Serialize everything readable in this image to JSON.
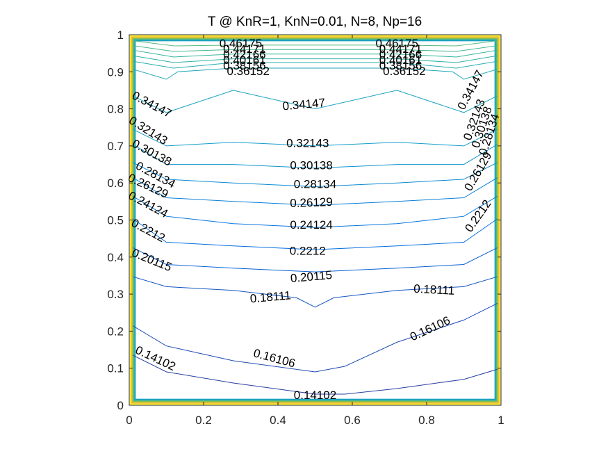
{
  "chart_data": {
    "type": "contour",
    "title": "T @ KnR=1, KnN=0.01, N=8, Np=16",
    "xlabel": "",
    "ylabel": "",
    "xlim": [
      0,
      1
    ],
    "ylim": [
      0,
      1
    ],
    "x_ticks": [
      0,
      0.2,
      0.4,
      0.6,
      0.8,
      1
    ],
    "y_ticks": [
      0,
      0.1,
      0.2,
      0.3,
      0.4,
      0.5,
      0.6,
      0.7,
      0.8,
      0.9,
      1
    ],
    "x_tick_labels": [
      "0",
      "0.2",
      "0.4",
      "0.6",
      "0.8",
      "1"
    ],
    "y_tick_labels": [
      "0",
      "0.1",
      "0.2",
      "0.3",
      "0.4",
      "0.5",
      "0.6",
      "0.7",
      "0.8",
      "0.9",
      "1"
    ],
    "grid": false,
    "colormap": "parula",
    "levels": [
      {
        "value": "0.14102",
        "x": [
          0.0,
          0.1,
          0.28,
          0.5,
          0.58,
          0.72,
          0.9,
          1.0
        ],
        "y": [
          0.14,
          0.09,
          0.06,
          0.03,
          0.03,
          0.045,
          0.07,
          0.1
        ]
      },
      {
        "value": "0.16106",
        "x": [
          0.0,
          0.1,
          0.28,
          0.5,
          0.58,
          0.72,
          0.9,
          1.0
        ],
        "y": [
          0.22,
          0.16,
          0.12,
          0.09,
          0.105,
          0.17,
          0.23,
          0.28
        ]
      },
      {
        "value": "0.18111",
        "x": [
          0.0,
          0.1,
          0.28,
          0.45,
          0.5,
          0.55,
          0.72,
          0.9,
          1.0
        ],
        "y": [
          0.35,
          0.32,
          0.31,
          0.29,
          0.265,
          0.29,
          0.31,
          0.32,
          0.35
        ]
      },
      {
        "value": "0.20115",
        "x": [
          0.0,
          0.1,
          0.28,
          0.5,
          0.72,
          0.9,
          1.0
        ],
        "y": [
          0.43,
          0.38,
          0.37,
          0.36,
          0.37,
          0.38,
          0.43
        ]
      },
      {
        "value": "0.2212",
        "x": [
          0.0,
          0.1,
          0.28,
          0.5,
          0.72,
          0.9,
          1.0
        ],
        "y": [
          0.51,
          0.44,
          0.43,
          0.42,
          0.43,
          0.44,
          0.51
        ]
      },
      {
        "value": "0.24124",
        "x": [
          0.0,
          0.1,
          0.28,
          0.5,
          0.72,
          0.9,
          1.0
        ],
        "y": [
          0.57,
          0.51,
          0.49,
          0.48,
          0.49,
          0.51,
          0.57
        ]
      },
      {
        "value": "0.26129",
        "x": [
          0.0,
          0.1,
          0.28,
          0.5,
          0.72,
          0.9,
          1.0
        ],
        "y": [
          0.62,
          0.56,
          0.55,
          0.54,
          0.55,
          0.56,
          0.62
        ]
      },
      {
        "value": "0.28134",
        "x": [
          0.0,
          0.1,
          0.28,
          0.5,
          0.72,
          0.9,
          1.0
        ],
        "y": [
          0.66,
          0.61,
          0.6,
          0.59,
          0.6,
          0.61,
          0.66
        ]
      },
      {
        "value": "0.30138",
        "x": [
          0.0,
          0.1,
          0.28,
          0.5,
          0.72,
          0.9,
          1.0
        ],
        "y": [
          0.71,
          0.65,
          0.65,
          0.64,
          0.65,
          0.65,
          0.71
        ]
      },
      {
        "value": "0.32143",
        "x": [
          0.0,
          0.1,
          0.28,
          0.5,
          0.72,
          0.9,
          1.0
        ],
        "y": [
          0.75,
          0.7,
          0.71,
          0.7,
          0.71,
          0.7,
          0.75
        ]
      },
      {
        "value": "0.34147",
        "x": [
          0.0,
          0.1,
          0.28,
          0.5,
          0.72,
          0.9,
          1.0
        ],
        "y": [
          0.84,
          0.79,
          0.85,
          0.8,
          0.85,
          0.79,
          0.84
        ]
      },
      {
        "value": "0.36152",
        "x": [
          0.0,
          0.1,
          0.13,
          0.28,
          0.5,
          0.72,
          0.87,
          0.9,
          1.0
        ],
        "y": [
          0.91,
          0.88,
          0.9,
          0.91,
          0.91,
          0.91,
          0.9,
          0.88,
          0.91
        ]
      },
      {
        "value": "0.38156",
        "x": [
          0.0,
          0.12,
          0.28,
          0.5,
          0.72,
          0.88,
          1.0
        ],
        "y": [
          0.93,
          0.91,
          0.925,
          0.925,
          0.925,
          0.91,
          0.93
        ]
      },
      {
        "value": "0.40161",
        "x": [
          0.0,
          0.12,
          0.28,
          0.5,
          0.72,
          0.88,
          1.0
        ],
        "y": [
          0.945,
          0.925,
          0.935,
          0.935,
          0.935,
          0.925,
          0.945
        ]
      },
      {
        "value": "0.42166",
        "x": [
          0.0,
          0.12,
          0.28,
          0.5,
          0.72,
          0.88,
          1.0
        ],
        "y": [
          0.96,
          0.94,
          0.948,
          0.948,
          0.948,
          0.94,
          0.96
        ]
      },
      {
        "value": "0.44171",
        "x": [
          0.0,
          0.12,
          0.28,
          0.5,
          0.72,
          0.88,
          1.0
        ],
        "y": [
          0.972,
          0.955,
          0.96,
          0.96,
          0.96,
          0.955,
          0.972
        ]
      },
      {
        "value": "0.46175",
        "x": [
          0.0,
          0.12,
          0.28,
          0.5,
          0.72,
          0.88,
          1.0
        ],
        "y": [
          0.985,
          0.97,
          0.972,
          0.972,
          0.972,
          0.97,
          0.985
        ]
      }
    ],
    "labels": [
      {
        "text": "0.46175",
        "x": 0.3,
        "y": 0.975,
        "angle": 0
      },
      {
        "text": "0.44171",
        "x": 0.31,
        "y": 0.96,
        "angle": 0
      },
      {
        "text": "0.42166",
        "x": 0.31,
        "y": 0.945,
        "angle": 0
      },
      {
        "text": "0.40161",
        "x": 0.31,
        "y": 0.93,
        "angle": 0
      },
      {
        "text": "0.38156",
        "x": 0.31,
        "y": 0.915,
        "angle": 0
      },
      {
        "text": "0.36152",
        "x": 0.32,
        "y": 0.9,
        "angle": 0
      },
      {
        "text": "0.46175",
        "x": 0.72,
        "y": 0.975,
        "angle": 0
      },
      {
        "text": "0.44171",
        "x": 0.73,
        "y": 0.96,
        "angle": 0
      },
      {
        "text": "0.42166",
        "x": 0.73,
        "y": 0.945,
        "angle": 0
      },
      {
        "text": "0.40161",
        "x": 0.73,
        "y": 0.93,
        "angle": 0
      },
      {
        "text": "0.38156",
        "x": 0.73,
        "y": 0.915,
        "angle": 0
      },
      {
        "text": "0.36152",
        "x": 0.74,
        "y": 0.9,
        "angle": 0
      },
      {
        "text": "0.34147",
        "x": 0.06,
        "y": 0.81,
        "angle": 28
      },
      {
        "text": "0.34147",
        "x": 0.47,
        "y": 0.81,
        "angle": -5
      },
      {
        "text": "0.34147",
        "x": 0.92,
        "y": 0.85,
        "angle": -62
      },
      {
        "text": "0.32143",
        "x": 0.05,
        "y": 0.74,
        "angle": 32
      },
      {
        "text": "0.32143",
        "x": 0.48,
        "y": 0.705,
        "angle": 0
      },
      {
        "text": "0.32143",
        "x": 0.93,
        "y": 0.77,
        "angle": -70
      },
      {
        "text": "0.30138",
        "x": 0.06,
        "y": 0.68,
        "angle": 28
      },
      {
        "text": "0.30138",
        "x": 0.49,
        "y": 0.645,
        "angle": 0
      },
      {
        "text": "0.30138",
        "x": 0.95,
        "y": 0.75,
        "angle": -72
      },
      {
        "text": "0.28134",
        "x": 0.07,
        "y": 0.62,
        "angle": 28
      },
      {
        "text": "0.28134",
        "x": 0.5,
        "y": 0.595,
        "angle": 0
      },
      {
        "text": "0.28134",
        "x": 0.97,
        "y": 0.73,
        "angle": -72
      },
      {
        "text": "0.26129",
        "x": 0.05,
        "y": 0.59,
        "angle": 25
      },
      {
        "text": "0.26129",
        "x": 0.49,
        "y": 0.545,
        "angle": -2
      },
      {
        "text": "0.26129",
        "x": 0.94,
        "y": 0.63,
        "angle": -60
      },
      {
        "text": "0.24124",
        "x": 0.05,
        "y": 0.54,
        "angle": 28
      },
      {
        "text": "0.24124",
        "x": 0.49,
        "y": 0.485,
        "angle": 0
      },
      {
        "text": "0.2212",
        "x": 0.05,
        "y": 0.47,
        "angle": 28
      },
      {
        "text": "0.2212",
        "x": 0.48,
        "y": 0.415,
        "angle": 0
      },
      {
        "text": "0.2212",
        "x": 0.94,
        "y": 0.51,
        "angle": -55
      },
      {
        "text": "0.20115",
        "x": 0.06,
        "y": 0.39,
        "angle": 22
      },
      {
        "text": "0.20115",
        "x": 0.49,
        "y": 0.345,
        "angle": -5
      },
      {
        "text": "0.18111",
        "x": 0.38,
        "y": 0.29,
        "angle": -5
      },
      {
        "text": "0.18111",
        "x": 0.82,
        "y": 0.31,
        "angle": 3
      },
      {
        "text": "0.16106",
        "x": 0.39,
        "y": 0.125,
        "angle": 15
      },
      {
        "text": "0.16106",
        "x": 0.81,
        "y": 0.205,
        "angle": -25
      },
      {
        "text": "0.14102",
        "x": 0.07,
        "y": 0.125,
        "angle": 25
      },
      {
        "text": "0.14102",
        "x": 0.5,
        "y": 0.025,
        "angle": 0
      }
    ]
  }
}
